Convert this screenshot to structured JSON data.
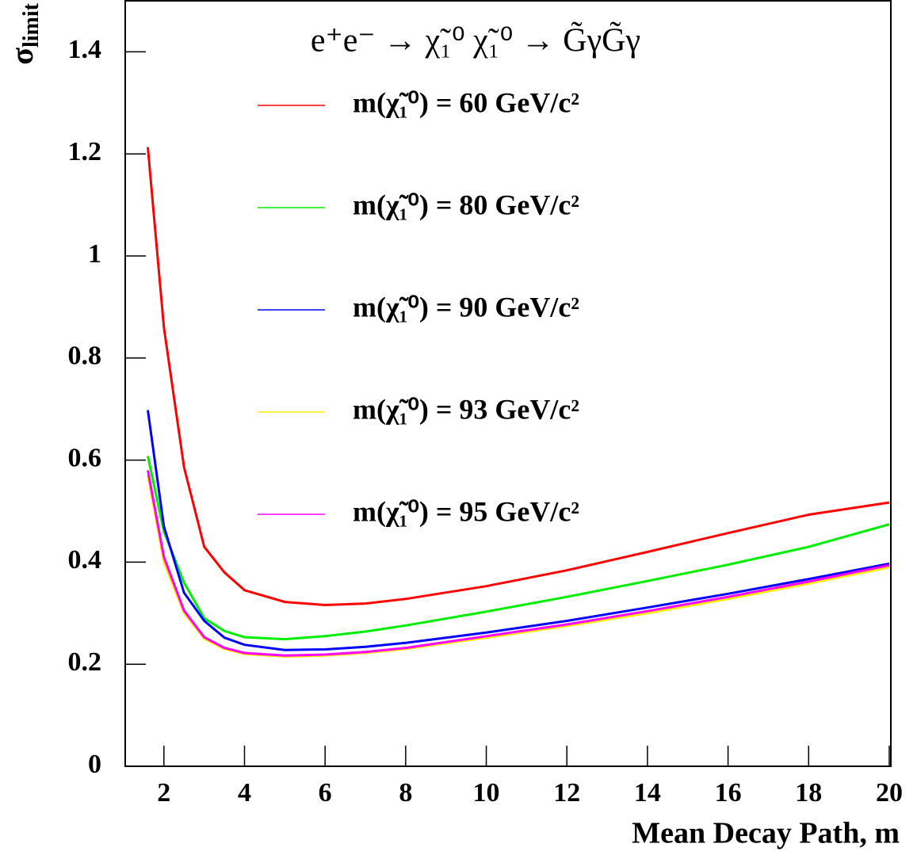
{
  "chart_data": {
    "type": "line",
    "title": "e⁺e⁻ → χ̃₁⁰ χ̃₁⁰ → G̃γG̃γ",
    "xlabel": "Mean Decay Path, m",
    "ylabel": "σ",
    "ylabel_subscript": "limit",
    "x": [
      1.6,
      2,
      2.5,
      3,
      3.5,
      4,
      5,
      6,
      7,
      8,
      10,
      12,
      14,
      16,
      18,
      20
    ],
    "series": [
      {
        "name": "m(χ̃₁⁰) = 60 GeV/c²",
        "color": "#ff0000",
        "values": [
          1.213,
          0.86,
          0.586,
          0.43,
          0.38,
          0.345,
          0.322,
          0.316,
          0.319,
          0.328,
          0.353,
          0.384,
          0.42,
          0.457,
          0.493,
          0.517
        ]
      },
      {
        "name": "m(χ̃₁⁰) = 80 GeV/c²",
        "color": "#00ee00",
        "values": [
          0.608,
          0.46,
          0.36,
          0.29,
          0.265,
          0.253,
          0.249,
          0.255,
          0.264,
          0.276,
          0.303,
          0.332,
          0.363,
          0.395,
          0.43,
          0.474
        ]
      },
      {
        "name": "m(χ̃₁⁰) = 90 GeV/c²",
        "color": "#0000ff",
        "values": [
          0.698,
          0.47,
          0.34,
          0.285,
          0.252,
          0.238,
          0.228,
          0.229,
          0.234,
          0.242,
          0.262,
          0.285,
          0.311,
          0.338,
          0.367,
          0.397
        ]
      },
      {
        "name": "m(χ̃₁⁰) = 93 GeV/c²",
        "color": "#ffee00",
        "values": [
          0.57,
          0.4,
          0.3,
          0.25,
          0.23,
          0.22,
          0.215,
          0.217,
          0.222,
          0.23,
          0.252,
          0.275,
          0.3,
          0.328,
          0.358,
          0.39
        ]
      },
      {
        "name": "m(χ̃₁⁰) = 95 GeV/c²",
        "color": "#ff00ff",
        "values": [
          0.58,
          0.41,
          0.305,
          0.253,
          0.232,
          0.222,
          0.217,
          0.219,
          0.224,
          0.232,
          0.255,
          0.278,
          0.304,
          0.332,
          0.362,
          0.394
        ]
      }
    ],
    "xlim": [
      1.04,
      20.04
    ],
    "ylim": [
      0,
      1.5
    ],
    "xticks": [
      2,
      4,
      6,
      8,
      10,
      12,
      14,
      16,
      18,
      20
    ],
    "yticks": [
      0,
      0.2,
      0.4,
      0.6,
      0.8,
      1,
      1.2,
      1.4
    ],
    "grid": false
  }
}
